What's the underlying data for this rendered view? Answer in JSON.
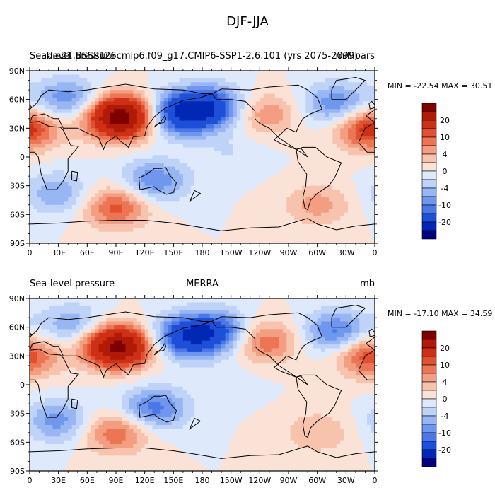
{
  "figure_title": "DJF-JJA",
  "color_levels": [
    -25,
    -20,
    -15,
    -10,
    -8,
    -6,
    -4,
    -2,
    0,
    2,
    4,
    6,
    8,
    10,
    15,
    20
  ],
  "colorbar_labels": [
    "20",
    "10",
    "4",
    "0",
    "-4",
    "-10",
    "-20"
  ],
  "colors": {
    "fill": [
      "#00007f",
      "#0028b4",
      "#1d4fd8",
      "#4a78e6",
      "#6f97ee",
      "#97b6f3",
      "#bfd3f8",
      "#deeafb",
      "#fbe2d6",
      "#f8c3ac",
      "#f39e81",
      "#ec7554",
      "#e1502f",
      "#cd3014",
      "#b01a06",
      "#7f0000"
    ],
    "ocean_neutral": "#e6f0fb"
  },
  "panels": [
    {
      "left_label": "Sea-level pressure",
      "center_label": "b.e21.BSSP126cmip6.f09_g17.CMIP6-SSP1-2.6.101 (yrs 2075-2099)",
      "right_label": "millibars",
      "min_max": "MIN = -22.54 MAX =  30.51"
    },
    {
      "left_label": "Sea-level pressure",
      "center_label": "MERRA",
      "right_label": "mb",
      "min_max": "MIN = -17.10 MAX =  34.59"
    }
  ],
  "lat_ticks": [
    "90N",
    "60N",
    "30N",
    "0",
    "30S",
    "60S",
    "90S"
  ],
  "lon_ticks": [
    "0",
    "30E",
    "60E",
    "90E",
    "120E",
    "150E",
    "180",
    "150W",
    "120W",
    "90W",
    "60W",
    "30W",
    "0"
  ],
  "chart_data": [
    {
      "type": "heatmap",
      "title": "",
      "variable": "Sea-level pressure",
      "case": "b.e21.BSSP126cmip6.f09_g17.CMIP6-SSP1-2.6.101 (yrs 2075-2099)",
      "units": "millibars",
      "min": -22.54,
      "max": 30.51,
      "x_range": [
        0,
        360
      ],
      "y_range": [
        -90,
        90
      ],
      "centers": [
        {
          "lon": 95,
          "lat": 42,
          "value": 24
        },
        {
          "lon": 155,
          "lat": 45,
          "value": -14
        },
        {
          "lon": 190,
          "lat": 52,
          "value": -12
        },
        {
          "lon": 320,
          "lat": 55,
          "value": -8
        },
        {
          "lon": 40,
          "lat": 60,
          "value": -8
        },
        {
          "lon": 90,
          "lat": -52,
          "value": 9
        },
        {
          "lon": 30,
          "lat": -38,
          "value": -6
        },
        {
          "lon": 130,
          "lat": -25,
          "value": -8
        },
        {
          "lon": 355,
          "lat": 30,
          "value": 12
        },
        {
          "lon": 245,
          "lat": 45,
          "value": 6
        },
        {
          "lon": 300,
          "lat": -50,
          "value": 5
        },
        {
          "lon": 210,
          "lat": 5,
          "value": -2
        }
      ]
    },
    {
      "type": "heatmap",
      "title": "",
      "variable": "Sea-level pressure",
      "case": "MERRA",
      "units": "mb",
      "min": -17.1,
      "max": 34.59,
      "x_range": [
        0,
        360
      ],
      "y_range": [
        -90,
        90
      ],
      "centers": [
        {
          "lon": 92,
          "lat": 40,
          "value": 22
        },
        {
          "lon": 160,
          "lat": 50,
          "value": -12
        },
        {
          "lon": 195,
          "lat": 55,
          "value": -11
        },
        {
          "lon": 320,
          "lat": 55,
          "value": -9
        },
        {
          "lon": 45,
          "lat": 62,
          "value": -6
        },
        {
          "lon": 90,
          "lat": -50,
          "value": 8
        },
        {
          "lon": 30,
          "lat": -38,
          "value": -7
        },
        {
          "lon": 130,
          "lat": -25,
          "value": -9
        },
        {
          "lon": 355,
          "lat": 30,
          "value": 10
        },
        {
          "lon": 245,
          "lat": 45,
          "value": 8
        },
        {
          "lon": 300,
          "lat": -50,
          "value": 4
        },
        {
          "lon": 210,
          "lat": 5,
          "value": -1
        }
      ]
    }
  ]
}
